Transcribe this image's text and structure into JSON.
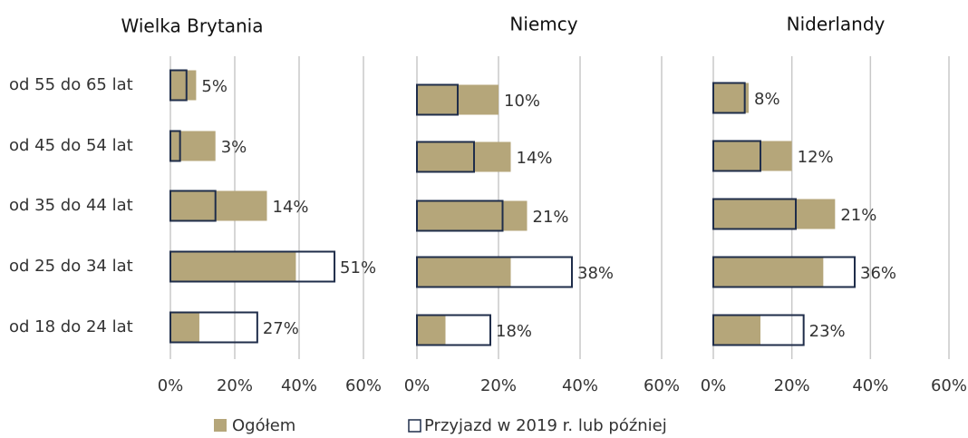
{
  "chart_data": {
    "type": "bar",
    "orientation": "horizontal",
    "categories": [
      "od 55 do 65 lat",
      "od 45 do 54 lat",
      "od 35 do 44 lat",
      "od 25 do 34 lat",
      "od 18 do 24 lat"
    ],
    "xlim": [
      0,
      60
    ],
    "xticks": [
      {
        "value": 0,
        "label": "0%"
      },
      {
        "value": 20,
        "label": "20%"
      },
      {
        "value": 40,
        "label": "40%"
      },
      {
        "value": 60,
        "label": "60%"
      }
    ],
    "grid": true,
    "series": [
      {
        "name": "Ogółem",
        "color": "#b5a67a",
        "style": "filled"
      },
      {
        "name": "Przyjazd w 2019 r. lub później",
        "color": "#1f2d4a",
        "style": "outline"
      }
    ],
    "panels": [
      {
        "title": "Wielka Brytania",
        "series": [
          {
            "values": [
              8,
              14,
              30,
              39,
              9
            ]
          },
          {
            "values": [
              5,
              3,
              14,
              51,
              27
            ],
            "value_labels": [
              "5%",
              "3%",
              "14%",
              "51%",
              "27%"
            ]
          }
        ]
      },
      {
        "title": "Niemcy",
        "series": [
          {
            "values": [
              20,
              23,
              27,
              23,
              7
            ]
          },
          {
            "values": [
              10,
              14,
              21,
              38,
              18
            ],
            "value_labels": [
              "10%",
              "14%",
              "21%",
              "38%",
              "18%"
            ]
          }
        ]
      },
      {
        "title": "Niderlandy",
        "series": [
          {
            "values": [
              9,
              20,
              31,
              28,
              12
            ]
          },
          {
            "values": [
              8,
              12,
              21,
              36,
              23
            ],
            "value_labels": [
              "8%",
              "12%",
              "21%",
              "36%",
              "23%"
            ]
          }
        ]
      }
    ]
  }
}
